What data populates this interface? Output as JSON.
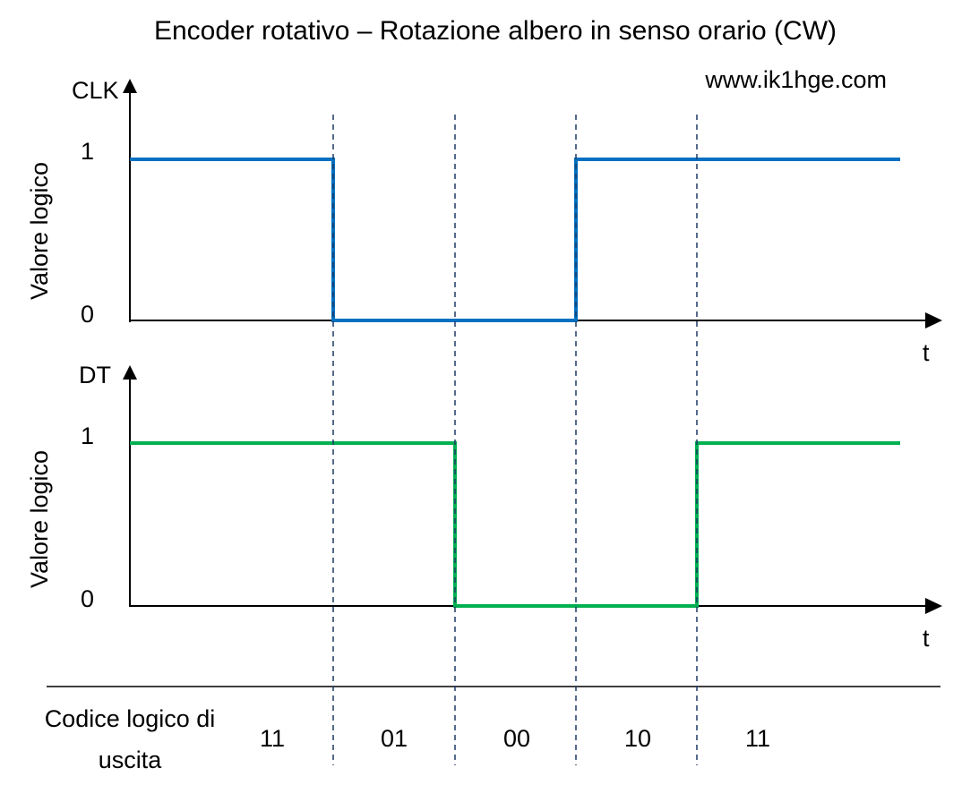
{
  "title": "Encoder rotativo – Rotazione albero in senso orario (CW)",
  "website": "www.ik1hge.com",
  "colors": {
    "clk": "#0070C0",
    "dt": "#00B050",
    "axes": "#000000",
    "guides": "#1F3864"
  },
  "clk": {
    "axis_name": "CLK",
    "y_label": "Valore logico",
    "tick_high": "1",
    "tick_low": "0",
    "time_label": "t",
    "levels": [
      1,
      0,
      0,
      1,
      1
    ]
  },
  "dt": {
    "axis_name": "DT",
    "y_label": "Valore logico",
    "tick_high": "1",
    "tick_low": "0",
    "time_label": "t",
    "levels": [
      1,
      1,
      0,
      0,
      1
    ]
  },
  "codes": {
    "header_line1": "Codice logico di",
    "header_line2": "uscita",
    "values": [
      "11",
      "01",
      "00",
      "10",
      "11"
    ]
  }
}
